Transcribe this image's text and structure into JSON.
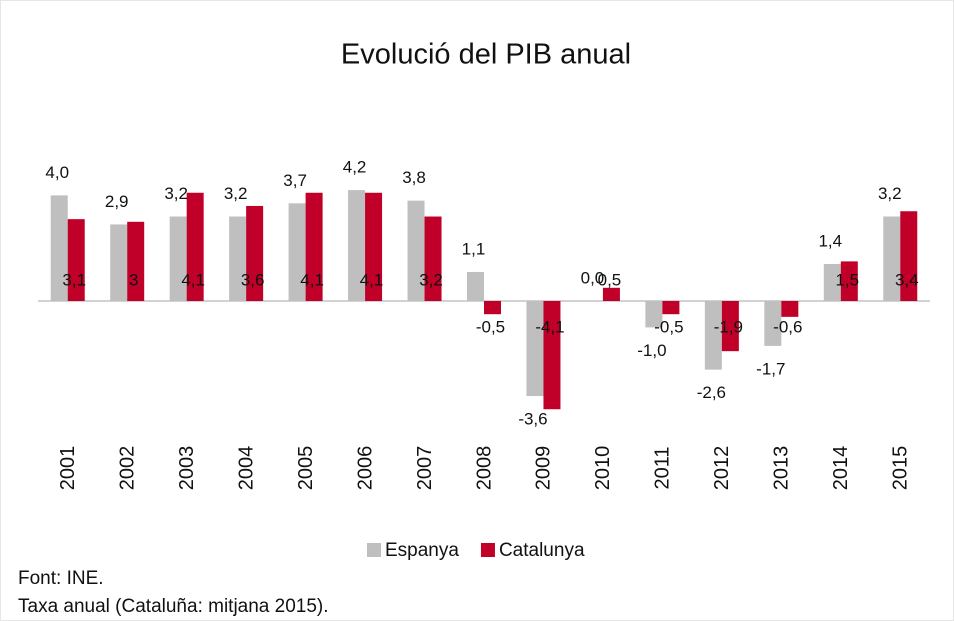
{
  "chart_data": {
    "type": "bar",
    "title": "Evolució del PIB anual",
    "categories": [
      "2001",
      "2002",
      "2003",
      "2004",
      "2005",
      "2006",
      "2007",
      "2008",
      "2009",
      "2010",
      "2011",
      "2012",
      "2013",
      "2014",
      "2015"
    ],
    "series": [
      {
        "name": "Espanya",
        "color": "#bfbfbf",
        "values": [
          4.0,
          2.9,
          3.2,
          3.2,
          3.7,
          4.2,
          3.8,
          1.1,
          -3.6,
          0.0,
          -1.0,
          -2.6,
          -1.7,
          1.4,
          3.2
        ],
        "value_labels": [
          "4,0",
          "2,9",
          "3,2",
          "3,2",
          "3,7",
          "4,2",
          "3,8",
          "1,1",
          "-3,6",
          "0,0",
          "-1,0",
          "-2,6",
          "-1,7",
          "1,4",
          "3,2"
        ]
      },
      {
        "name": "Catalunya",
        "color": "#c00028",
        "values": [
          3.1,
          3,
          4.1,
          3.6,
          4.1,
          4.1,
          3.2,
          -0.5,
          -4.1,
          0.5,
          -0.5,
          -1.9,
          -0.6,
          1.5,
          3.4
        ],
        "value_labels": [
          "3,1",
          "3",
          "4,1",
          "3,6",
          "4,1",
          "4,1",
          "3,2",
          "-0,5",
          "-4,1",
          "0,5",
          "-0,5",
          "-1,9",
          "-0,6",
          "1,5",
          "3,4"
        ]
      }
    ],
    "ylim": [
      -5,
      5
    ],
    "legend": "bottom",
    "notes": [
      "Font: INE.",
      "Taxa anual (Cataluña: mitjana 2015)."
    ]
  }
}
